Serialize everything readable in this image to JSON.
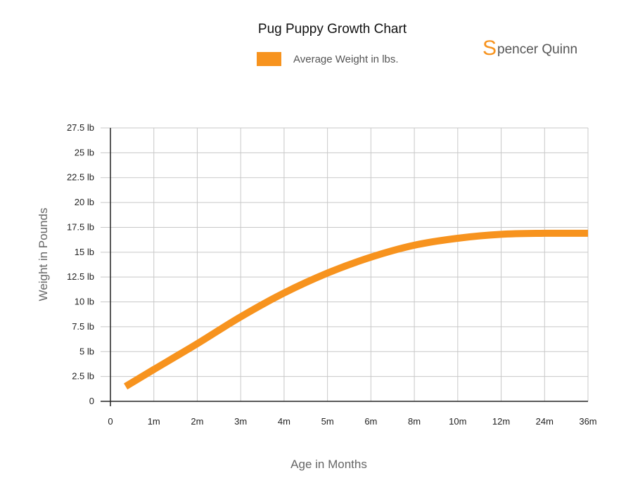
{
  "title": "Pug Puppy Growth Chart",
  "brand": {
    "mark": "S",
    "rest": "pencer Quinn"
  },
  "legend": {
    "label": "Average Weight in lbs."
  },
  "colors": {
    "series": "#f7931e",
    "grid": "#c8c8c8",
    "axis": "#222222"
  },
  "chart_data": {
    "type": "line",
    "title": "Pug Puppy Growth Chart",
    "xlabel": "Age in Months",
    "ylabel": "Weight in Pounds",
    "x_ticks": [
      "0",
      "1m",
      "2m",
      "3m",
      "4m",
      "5m",
      "6m",
      "8m",
      "10m",
      "12m",
      "24m",
      "36m"
    ],
    "y_ticks": [
      "0",
      "2.5 lb",
      "5 lb",
      "7.5 lb",
      "10 lb",
      "12.5 lb",
      "15 lb",
      "17.5 lb",
      "20 lb",
      "22.5 lb",
      "25 lb",
      "27.5 lb"
    ],
    "ylim": [
      0,
      27.5
    ],
    "grid": true,
    "legend_position": "top",
    "series": [
      {
        "name": "Average Weight in lbs.",
        "x_index": [
          0.35,
          1,
          2,
          3,
          4,
          5,
          6,
          7,
          8,
          9,
          10,
          11
        ],
        "values": [
          1.5,
          3.2,
          5.8,
          8.5,
          10.9,
          12.9,
          14.5,
          15.7,
          16.4,
          16.8,
          16.9,
          16.9
        ]
      }
    ]
  }
}
